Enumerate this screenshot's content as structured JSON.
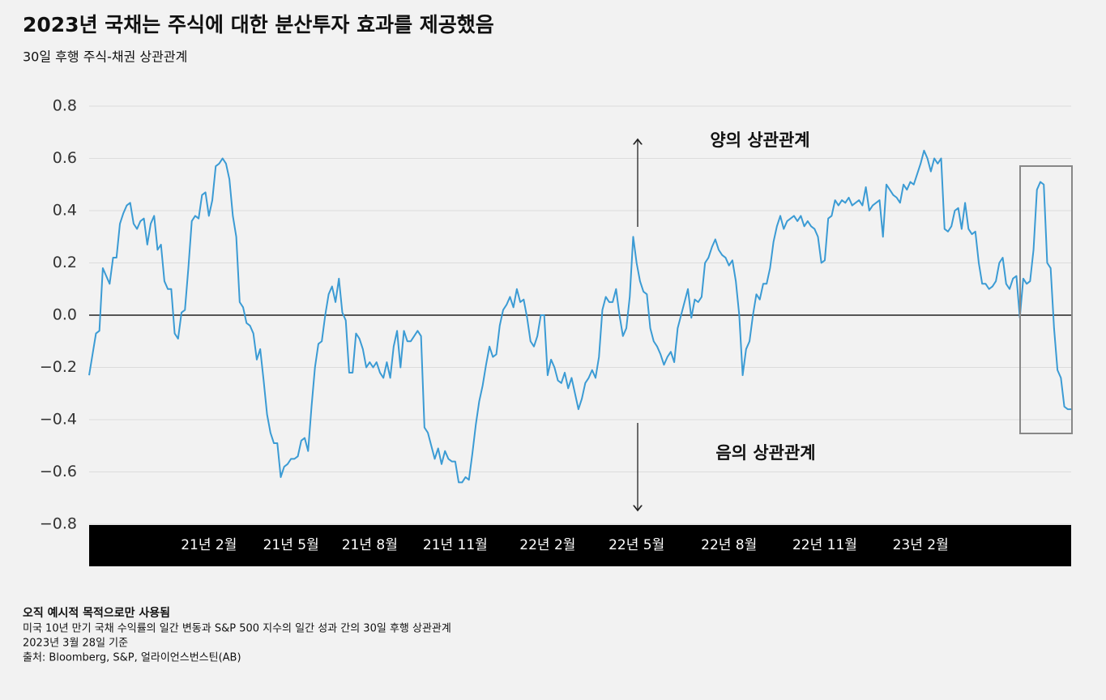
{
  "chart_data": {
    "type": "line",
    "title": "2023년 국채는 주식에 대한 분산투자 효과를 제공했음",
    "subtitle": "30일 후행 주식-채권 상관관계",
    "annotations": [
      "양의 상관관계",
      "음의 상관관계"
    ],
    "notes": [
      "오직 예시적 목적으로만 사용됨",
      "미국 10년 만기 국채 수익률의 일간 변동과 S&P 500 지수의 일간 성과 간의 30일 후행 상관관계",
      "2023년 3월 28일 기준",
      "출처: Bloomberg, S&P, 얼라이언스번스틴(AB)"
    ],
    "color": "#3b9bd4",
    "grid": true,
    "ylim": [
      -0.8,
      0.8
    ],
    "yticks": [
      {
        "value": -0.8,
        "label": "−0.8"
      },
      {
        "value": -0.6,
        "label": "−0.6"
      },
      {
        "value": -0.4,
        "label": "−0.4"
      },
      {
        "value": -0.2,
        "label": "−0.2"
      },
      {
        "value": 0,
        "label": "0.0"
      },
      0.2,
      0.4,
      0.6,
      0.8
    ],
    "categories": [
      null,
      null,
      null,
      null,
      null,
      null,
      null,
      null,
      null,
      null,
      null,
      null,
      null,
      null,
      null,
      null,
      null,
      null,
      null,
      null,
      null,
      null,
      null,
      null,
      null,
      null,
      null,
      null,
      null,
      null,
      null,
      null,
      null,
      null,
      null,
      "21년 2월",
      null,
      null,
      null,
      null,
      null,
      null,
      null,
      null,
      null,
      null,
      null,
      null,
      null,
      null,
      null,
      null,
      null,
      null,
      null,
      null,
      null,
      null,
      null,
      "21년 5월",
      null,
      null,
      null,
      null,
      null,
      null,
      null,
      null,
      null,
      null,
      null,
      null,
      null,
      null,
      null,
      null,
      null,
      null,
      null,
      null,
      null,
      null,
      "21년 8월",
      null,
      null,
      null,
      null,
      null,
      null,
      null,
      null,
      null,
      null,
      null,
      null,
      null,
      null,
      null,
      null,
      null,
      null,
      null,
      null,
      null,
      null,
      null,
      null,
      "21년 11월",
      null,
      null,
      null,
      null,
      null,
      null,
      null,
      null,
      null,
      null,
      null,
      null,
      null,
      null,
      null,
      null,
      null,
      null,
      null,
      null,
      null,
      null,
      null,
      null,
      null,
      null,
      "22년 2월",
      null,
      null,
      null,
      null,
      null,
      null,
      null,
      null,
      null,
      null,
      null,
      null,
      null,
      null,
      null,
      null,
      null,
      null,
      null,
      null,
      null,
      null,
      null,
      null,
      null,
      "22년 5월",
      null,
      null,
      null,
      null,
      null,
      null,
      null,
      null,
      null,
      null,
      null,
      null,
      null,
      null,
      null,
      null,
      null,
      null,
      null,
      null,
      null,
      null,
      null,
      null,
      null,
      null,
      "22년 8월",
      null,
      null,
      null,
      null,
      null,
      null,
      null,
      null,
      null,
      null,
      null,
      null,
      null,
      null,
      null,
      null,
      null,
      null,
      null,
      null,
      null,
      null,
      null,
      null,
      null,
      null,
      null,
      "22년 11월",
      null,
      null,
      null,
      null,
      null,
      null,
      null,
      null,
      null,
      null,
      null,
      null,
      null,
      null,
      null,
      null,
      null,
      null,
      null,
      null,
      null,
      null,
      null,
      null,
      null,
      null,
      null,
      "23년 2월",
      null,
      null,
      null,
      null,
      null,
      null,
      null,
      null,
      null,
      null,
      null,
      null,
      null,
      null,
      null,
      null,
      null,
      null,
      null,
      null,
      null,
      null,
      null,
      null,
      null,
      null,
      null,
      null,
      null,
      null,
      null,
      null,
      null,
      null,
      null,
      null,
      null,
      null,
      null,
      null,
      null,
      null,
      null,
      null
    ],
    "values": [
      -0.23,
      -0.15,
      -0.07,
      -0.06,
      0.18,
      0.15,
      0.12,
      0.22,
      0.22,
      0.35,
      0.39,
      0.42,
      0.43,
      0.35,
      0.33,
      0.36,
      0.37,
      0.27,
      0.35,
      0.38,
      0.25,
      0.27,
      0.13,
      0.1,
      0.1,
      -0.07,
      -0.09,
      0.01,
      0.02,
      0.18,
      0.36,
      0.38,
      0.37,
      0.46,
      0.47,
      0.38,
      0.44,
      0.57,
      0.58,
      0.6,
      0.58,
      0.52,
      0.38,
      0.3,
      0.05,
      0.03,
      -0.03,
      -0.04,
      -0.07,
      -0.17,
      -0.13,
      -0.25,
      -0.38,
      -0.45,
      -0.49,
      -0.49,
      -0.62,
      -0.58,
      -0.57,
      -0.55,
      -0.55,
      -0.54,
      -0.48,
      -0.47,
      -0.52,
      -0.35,
      -0.2,
      -0.11,
      -0.1,
      0.0,
      0.08,
      0.11,
      0.05,
      0.14,
      0.01,
      -0.02,
      -0.22,
      -0.22,
      -0.07,
      -0.09,
      -0.13,
      -0.2,
      -0.18,
      -0.2,
      -0.18,
      -0.22,
      -0.24,
      -0.18,
      -0.24,
      -0.12,
      -0.06,
      -0.2,
      -0.06,
      -0.1,
      -0.1,
      -0.08,
      -0.06,
      -0.08,
      -0.43,
      -0.45,
      -0.5,
      -0.55,
      -0.51,
      -0.57,
      -0.52,
      -0.55,
      -0.56,
      -0.56,
      -0.64,
      -0.64,
      -0.62,
      -0.63,
      -0.53,
      -0.42,
      -0.33,
      -0.27,
      -0.19,
      -0.12,
      -0.16,
      -0.15,
      -0.04,
      0.02,
      0.04,
      0.07,
      0.03,
      0.1,
      0.05,
      0.06,
      -0.01,
      -0.1,
      -0.12,
      -0.08,
      0.0,
      0.0,
      -0.23,
      -0.17,
      -0.2,
      -0.25,
      -0.26,
      -0.22,
      -0.28,
      -0.24,
      -0.3,
      -0.36,
      -0.32,
      -0.26,
      -0.24,
      -0.21,
      -0.24,
      -0.16,
      0.02,
      0.07,
      0.05,
      0.05,
      0.1,
      0.0,
      -0.08,
      -0.05,
      0.07,
      0.3,
      0.2,
      0.13,
      0.09,
      0.08,
      -0.05,
      -0.1,
      -0.12,
      -0.15,
      -0.19,
      -0.16,
      -0.14,
      -0.18,
      -0.05,
      0.0,
      0.05,
      0.1,
      -0.01,
      0.06,
      0.05,
      0.07,
      0.2,
      0.22,
      0.26,
      0.29,
      0.25,
      0.23,
      0.22,
      0.19,
      0.21,
      0.13,
      0.0,
      -0.23,
      -0.13,
      -0.1,
      0.0,
      0.08,
      0.06,
      0.12,
      0.12,
      0.18,
      0.28,
      0.34,
      0.38,
      0.33,
      0.36,
      0.37,
      0.38,
      0.36,
      0.38,
      0.34,
      0.36,
      0.34,
      0.33,
      0.3,
      0.2,
      0.21,
      0.37,
      0.38,
      0.44,
      0.42,
      0.44,
      0.43,
      0.45,
      0.42,
      0.43,
      0.44,
      0.42,
      0.49,
      0.4,
      0.42,
      0.43,
      0.44,
      0.3,
      0.5,
      0.48,
      0.46,
      0.45,
      0.43,
      0.5,
      0.48,
      0.51,
      0.5,
      0.54,
      0.58,
      0.63,
      0.6,
      0.55,
      0.6,
      0.58,
      0.6,
      0.33,
      0.32,
      0.34,
      0.4,
      0.41,
      0.33,
      0.43,
      0.33,
      0.31,
      0.32,
      0.2,
      0.12,
      0.12,
      0.1,
      0.11,
      0.13,
      0.2,
      0.22,
      0.12,
      0.1,
      0.14,
      0.15,
      -0.01,
      0.14,
      0.12,
      0.13,
      0.25,
      0.48,
      0.51,
      0.5,
      0.2,
      0.18,
      -0.05,
      -0.21,
      -0.24,
      -0.35,
      -0.36,
      -0.36
    ]
  }
}
